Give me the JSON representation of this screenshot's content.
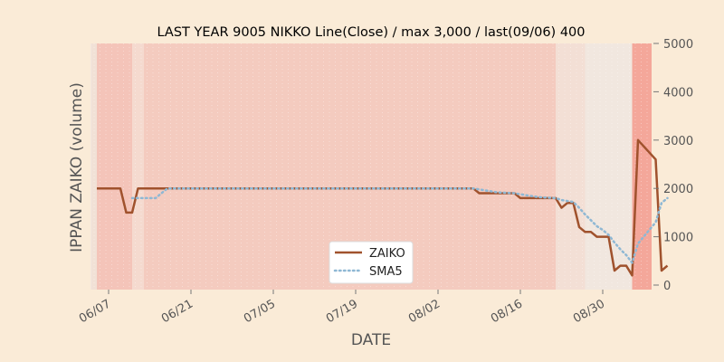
{
  "chart_data": {
    "type": "line",
    "title": "LAST YEAR 9005 NIKKO Line(Close) / max 3,000 / last(09/06) 400",
    "xlabel": "DATE",
    "ylabel": "IPPAN ZAIKO (volume)",
    "ylim": [
      0,
      5000
    ],
    "y_axis_side": "right",
    "yticks": [
      "0",
      "1000",
      "2000",
      "3000",
      "4000",
      "5000"
    ],
    "xticks": [
      {
        "label": "06/07",
        "date": "06/07"
      },
      {
        "label": "06/21",
        "date": "06/21"
      },
      {
        "label": "07/05",
        "date": "07/05"
      },
      {
        "label": "07/19",
        "date": "07/19"
      },
      {
        "label": "08/02",
        "date": "08/02"
      },
      {
        "label": "08/16",
        "date": "08/16"
      },
      {
        "label": "08/30",
        "date": "08/30"
      }
    ],
    "xrange": [
      "06/07",
      "09/06"
    ],
    "legend_position": "bottom-center",
    "series": [
      {
        "name": "ZAIKO",
        "color": "#a0522d",
        "style": "solid",
        "points": [
          [
            "06/05",
            2000
          ],
          [
            "06/06",
            2000
          ],
          [
            "06/07",
            2000
          ],
          [
            "06/08",
            2000
          ],
          [
            "06/09",
            2000
          ],
          [
            "06/10",
            1500
          ],
          [
            "06/11",
            1500
          ],
          [
            "06/12",
            2000
          ],
          [
            "06/13",
            2000
          ],
          [
            "06/14",
            2000
          ],
          [
            "06/15",
            2000
          ],
          [
            "06/16",
            2000
          ],
          [
            "06/17",
            2000
          ],
          [
            "06/20",
            2000
          ],
          [
            "06/21",
            2000
          ],
          [
            "06/22",
            2000
          ],
          [
            "06/23",
            2000
          ],
          [
            "06/24",
            2000
          ],
          [
            "06/27",
            2000
          ],
          [
            "06/28",
            2000
          ],
          [
            "06/29",
            2000
          ],
          [
            "06/30",
            2000
          ],
          [
            "07/01",
            2000
          ],
          [
            "07/04",
            2000
          ],
          [
            "07/05",
            2000
          ],
          [
            "07/06",
            2000
          ],
          [
            "07/07",
            2000
          ],
          [
            "07/08",
            2000
          ],
          [
            "07/11",
            2000
          ],
          [
            "07/12",
            2000
          ],
          [
            "07/13",
            2000
          ],
          [
            "07/14",
            2000
          ],
          [
            "07/15",
            2000
          ],
          [
            "07/19",
            2000
          ],
          [
            "07/20",
            2000
          ],
          [
            "07/21",
            2000
          ],
          [
            "07/22",
            2000
          ],
          [
            "07/25",
            2000
          ],
          [
            "07/26",
            2000
          ],
          [
            "07/27",
            2000
          ],
          [
            "07/28",
            2000
          ],
          [
            "07/29",
            2000
          ],
          [
            "08/01",
            2000
          ],
          [
            "08/02",
            2000
          ],
          [
            "08/03",
            2000
          ],
          [
            "08/04",
            2000
          ],
          [
            "08/05",
            2000
          ],
          [
            "08/08",
            2000
          ],
          [
            "08/09",
            1900
          ],
          [
            "08/10",
            1900
          ],
          [
            "08/11",
            1900
          ],
          [
            "08/12",
            1900
          ],
          [
            "08/15",
            1900
          ],
          [
            "08/16",
            1800
          ],
          [
            "08/17",
            1800
          ],
          [
            "08/18",
            1800
          ],
          [
            "08/19",
            1800
          ],
          [
            "08/22",
            1800
          ],
          [
            "08/23",
            1600
          ],
          [
            "08/24",
            1700
          ],
          [
            "08/25",
            1700
          ],
          [
            "08/26",
            1200
          ],
          [
            "08/27",
            1100
          ],
          [
            "08/28",
            1100
          ],
          [
            "08/29",
            1000
          ],
          [
            "08/30",
            1000
          ],
          [
            "08/31",
            1000
          ],
          [
            "09/01",
            300
          ],
          [
            "09/02",
            400
          ],
          [
            "09/03",
            400
          ],
          [
            "09/04",
            200
          ],
          [
            "09/05",
            3000
          ],
          [
            "09/08",
            2600
          ],
          [
            "09/09",
            300
          ],
          [
            "09/10",
            400
          ]
        ]
      },
      {
        "name": "SMA5",
        "color": "#8fb8d4",
        "style": "dotted",
        "points": [
          [
            "06/11",
            1800
          ],
          [
            "06/12",
            1800
          ],
          [
            "06/13",
            1800
          ],
          [
            "06/14",
            1800
          ],
          [
            "06/15",
            1800
          ],
          [
            "06/16",
            1900
          ],
          [
            "06/17",
            2000
          ],
          [
            "06/20",
            2000
          ],
          [
            "06/21",
            2000
          ],
          [
            "06/22",
            2000
          ],
          [
            "06/23",
            2000
          ],
          [
            "06/24",
            2000
          ],
          [
            "06/27",
            2000
          ],
          [
            "06/28",
            2000
          ],
          [
            "06/29",
            2000
          ],
          [
            "06/30",
            2000
          ],
          [
            "07/01",
            2000
          ],
          [
            "07/04",
            2000
          ],
          [
            "07/05",
            2000
          ],
          [
            "07/06",
            2000
          ],
          [
            "07/07",
            2000
          ],
          [
            "07/08",
            2000
          ],
          [
            "07/11",
            2000
          ],
          [
            "07/12",
            2000
          ],
          [
            "07/13",
            2000
          ],
          [
            "07/14",
            2000
          ],
          [
            "07/15",
            2000
          ],
          [
            "07/19",
            2000
          ],
          [
            "07/20",
            2000
          ],
          [
            "07/21",
            2000
          ],
          [
            "07/22",
            2000
          ],
          [
            "07/25",
            2000
          ],
          [
            "07/26",
            2000
          ],
          [
            "07/27",
            2000
          ],
          [
            "07/28",
            2000
          ],
          [
            "07/29",
            2000
          ],
          [
            "08/01",
            2000
          ],
          [
            "08/02",
            2000
          ],
          [
            "08/03",
            2000
          ],
          [
            "08/04",
            2000
          ],
          [
            "08/05",
            2000
          ],
          [
            "08/08",
            2000
          ],
          [
            "08/09",
            1980
          ],
          [
            "08/10",
            1960
          ],
          [
            "08/11",
            1940
          ],
          [
            "08/12",
            1920
          ],
          [
            "08/15",
            1900
          ],
          [
            "08/16",
            1880
          ],
          [
            "08/17",
            1860
          ],
          [
            "08/18",
            1840
          ],
          [
            "08/19",
            1820
          ],
          [
            "08/22",
            1800
          ],
          [
            "08/23",
            1760
          ],
          [
            "08/24",
            1740
          ],
          [
            "08/25",
            1720
          ],
          [
            "08/26",
            1600
          ],
          [
            "08/27",
            1460
          ],
          [
            "08/28",
            1340
          ],
          [
            "08/29",
            1220
          ],
          [
            "08/30",
            1140
          ],
          [
            "08/31",
            1040
          ],
          [
            "09/01",
            880
          ],
          [
            "09/02",
            740
          ],
          [
            "09/03",
            620
          ],
          [
            "09/04",
            460
          ],
          [
            "09/05",
            860
          ],
          [
            "09/08",
            1300
          ],
          [
            "09/09",
            1700
          ],
          [
            "09/10",
            1800
          ]
        ]
      }
    ],
    "background_bands": [
      {
        "from": "06/04",
        "to": "06/05",
        "color": "#efd9cc",
        "opacity": 0.6
      },
      {
        "from": "06/05",
        "to": "06/11",
        "color": "#f3b6aa",
        "opacity": 0.75
      },
      {
        "from": "06/11",
        "to": "06/13",
        "color": "#f4cfc3",
        "opacity": 0.65
      },
      {
        "from": "06/13",
        "to": "08/22",
        "color": "#f3bcae",
        "opacity": 0.7
      },
      {
        "from": "08/22",
        "to": "08/27",
        "color": "#f2d6ca",
        "opacity": 0.6
      },
      {
        "from": "08/27",
        "to": "09/04",
        "color": "#efe4dc",
        "opacity": 0.7
      },
      {
        "from": "09/04",
        "to": "09/08",
        "color": "#f39a8c",
        "opacity": 0.85
      },
      {
        "from": "09/08",
        "to": "09/12",
        "color": "#efe4dc",
        "opacity": 0.7
      }
    ]
  }
}
